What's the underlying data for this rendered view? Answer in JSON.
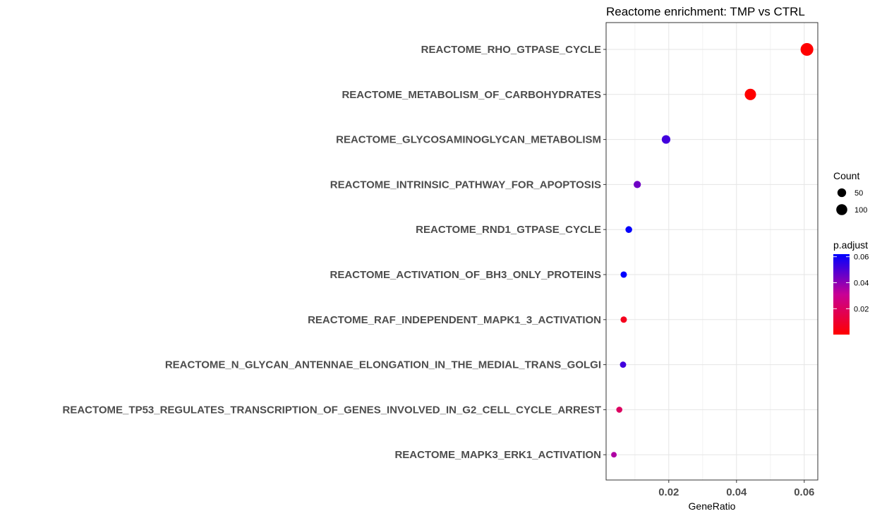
{
  "chart_data": {
    "type": "scatter",
    "title": "Reactome enrichment: TMP vs CTRL",
    "xlabel": "GeneRatio",
    "ylabel": "",
    "xlim": [
      0.0015,
      0.064
    ],
    "x_ticks": [
      "0.02",
      "0.04",
      "0.06"
    ],
    "grid": true,
    "legend_position": "right",
    "categories": [
      "REACTOME_RHO_GTPASE_CYCLE",
      "REACTOME_METABOLISM_OF_CARBOHYDRATES",
      "REACTOME_GLYCOSAMINOGLYCAN_METABOLISM",
      "REACTOME_INTRINSIC_PATHWAY_FOR_APOPTOSIS",
      "REACTOME_RND1_GTPASE_CYCLE",
      "REACTOME_ACTIVATION_OF_BH3_ONLY_PROTEINS",
      "REACTOME_RAF_INDEPENDENT_MAPK1_3_ACTIVATION",
      "REACTOME_N_GLYCAN_ANTENNAE_ELONGATION_IN_THE_MEDIAL_TRANS_GOLGI",
      "REACTOME_TP53_REGULATES_TRANSCRIPTION_OF_GENES_INVOLVED_IN_G2_CELL_CYCLE_ARREST",
      "REACTOME_MAPK3_ERK1_ACTIVATION"
    ],
    "series": [
      {
        "x": [
          0.0608,
          0.0441,
          0.0192,
          0.0107,
          0.0082,
          0.0067,
          0.0067,
          0.0065,
          0.0054,
          0.0038
        ],
        "count": [
          150,
          109,
          48,
          27,
          21,
          17,
          17,
          16,
          14,
          10
        ],
        "p_adjust": [
          0.0001,
          0.0001,
          0.052,
          0.045,
          0.061,
          0.062,
          0.006,
          0.052,
          0.02,
          0.035
        ]
      }
    ],
    "legend_size": {
      "title": "Count",
      "items": [
        "50",
        "100"
      ],
      "values": [
        50,
        100
      ]
    },
    "legend_color": {
      "title": "p.adjust",
      "ticks": [
        "0.06",
        "0.04",
        "0.02"
      ],
      "tick_values": [
        0.06,
        0.04,
        0.02
      ],
      "range": [
        0.0001,
        0.062
      ],
      "low_color": "#ff0000",
      "high_color": "#0000ff"
    }
  }
}
